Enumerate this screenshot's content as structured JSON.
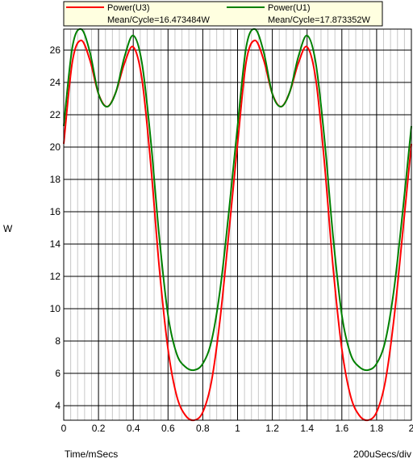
{
  "chart_data": {
    "type": "line",
    "xlabel": "Time/mSecs",
    "ylabel": "W",
    "scale_label": "200uSecs/div",
    "xlim": [
      0,
      2
    ],
    "ylim": [
      3.1,
      27.3
    ],
    "x_ticks": [
      "0",
      "0.2",
      "0.4",
      "0.6",
      "0.8",
      "1",
      "1.2",
      "1.4",
      "1.6",
      "1.8",
      "2"
    ],
    "x_tick_values": [
      0,
      0.2,
      0.4,
      0.6,
      0.8,
      1.0,
      1.2,
      1.4,
      1.6,
      1.8,
      2.0
    ],
    "y_ticks": [
      "4",
      "6",
      "8",
      "10",
      "12",
      "14",
      "16",
      "18",
      "20",
      "22",
      "24",
      "26"
    ],
    "y_tick_values": [
      4,
      6,
      8,
      10,
      12,
      14,
      16,
      18,
      20,
      22,
      24,
      26
    ],
    "grid": true,
    "legend_position": "top",
    "series": [
      {
        "name": "Power(U3)",
        "stat": "Mean/Cycle=16.473484W",
        "color": "#ff0000",
        "x": [
          0,
          0.05,
          0.1,
          0.15,
          0.2,
          0.25,
          0.3,
          0.35,
          0.4,
          0.45,
          0.5,
          0.55,
          0.6,
          0.65,
          0.7,
          0.75,
          0.8,
          0.85,
          0.9,
          0.95,
          1.0,
          1.05,
          1.1,
          1.15,
          1.2,
          1.25,
          1.3,
          1.35,
          1.4,
          1.45,
          1.5,
          1.55,
          1.6,
          1.65,
          1.7,
          1.75,
          1.8,
          1.85,
          1.9,
          1.95,
          2.0
        ],
        "values": [
          20.2,
          25.3,
          26.6,
          25.4,
          23.3,
          22.5,
          23.4,
          25.2,
          26.2,
          24.2,
          19.0,
          12.5,
          7.5,
          4.6,
          3.4,
          3.1,
          3.6,
          5.5,
          9.4,
          14.7,
          20.2,
          25.3,
          26.6,
          25.4,
          23.3,
          22.5,
          23.4,
          25.2,
          26.2,
          24.2,
          19.0,
          12.5,
          7.5,
          4.6,
          3.4,
          3.1,
          3.6,
          5.5,
          9.4,
          14.7,
          20.2
        ]
      },
      {
        "name": "Power(U1)",
        "stat": "Mean/Cycle=17.873352W",
        "color": "#008000",
        "x": [
          0,
          0.05,
          0.1,
          0.15,
          0.2,
          0.25,
          0.3,
          0.35,
          0.4,
          0.45,
          0.5,
          0.55,
          0.6,
          0.65,
          0.7,
          0.75,
          0.8,
          0.85,
          0.9,
          0.95,
          1.0,
          1.05,
          1.1,
          1.15,
          1.2,
          1.25,
          1.3,
          1.35,
          1.4,
          1.45,
          1.5,
          1.55,
          1.6,
          1.65,
          1.7,
          1.75,
          1.8,
          1.85,
          1.9,
          1.95,
          2.0
        ],
        "values": [
          21.3,
          26.2,
          27.3,
          25.9,
          23.3,
          22.5,
          23.4,
          25.6,
          26.9,
          25.2,
          20.5,
          14.4,
          9.6,
          7.2,
          6.4,
          6.2,
          6.6,
          8.0,
          11.2,
          16.0,
          21.3,
          26.2,
          27.3,
          25.9,
          23.3,
          22.5,
          23.4,
          25.6,
          26.9,
          25.2,
          20.5,
          14.4,
          9.6,
          7.2,
          6.4,
          6.2,
          6.6,
          8.0,
          11.2,
          16.0,
          21.3
        ]
      }
    ]
  }
}
